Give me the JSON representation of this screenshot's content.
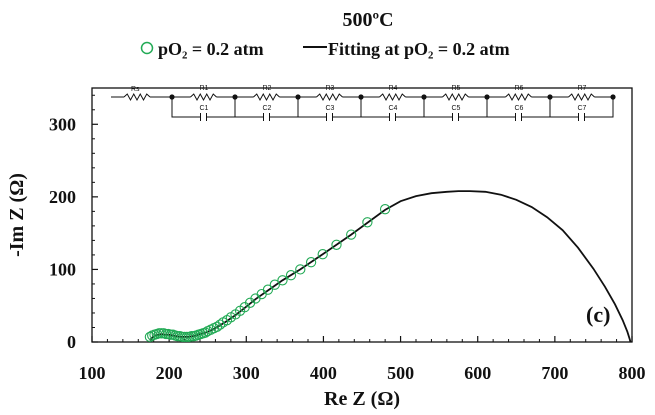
{
  "chart_data": {
    "type": "scatter",
    "title": "500ºC",
    "panel_label": "(c)",
    "xlabel": "Re Z (Ω)",
    "ylabel": "-Im Z (Ω)",
    "xlim": [
      100,
      800
    ],
    "ylim": [
      0,
      350
    ],
    "x_ticks": [
      "100",
      "200",
      "300",
      "400",
      "500",
      "600",
      "700",
      "800"
    ],
    "y_ticks": [
      "0",
      "100",
      "200",
      "300"
    ],
    "grid": false,
    "legend": {
      "placement": "top",
      "entries": [
        {
          "label": "pO₂ = 0.2 atm",
          "marker": "open-circle",
          "color": "#22aa55"
        },
        {
          "label": "Fitting at pO₂ = 0.2 atm",
          "marker": "line",
          "color": "#111111"
        }
      ]
    },
    "series": [
      {
        "name": "pO₂ = 0.2 atm",
        "kind": "markers",
        "color": "#22aa55",
        "points": [
          [
            175,
            7
          ],
          [
            178,
            9
          ],
          [
            181,
            10
          ],
          [
            184,
            11
          ],
          [
            187,
            12
          ],
          [
            190,
            12
          ],
          [
            193,
            12
          ],
          [
            196,
            11
          ],
          [
            199,
            11
          ],
          [
            202,
            10
          ],
          [
            205,
            10
          ],
          [
            208,
            9
          ],
          [
            211,
            8
          ],
          [
            214,
            8
          ],
          [
            217,
            7
          ],
          [
            220,
            7
          ],
          [
            223,
            7
          ],
          [
            226,
            7
          ],
          [
            229,
            8
          ],
          [
            232,
            8
          ],
          [
            235,
            9
          ],
          [
            238,
            10
          ],
          [
            241,
            11
          ],
          [
            244,
            12
          ],
          [
            247,
            13
          ],
          [
            250,
            15
          ],
          [
            254,
            17
          ],
          [
            258,
            19
          ],
          [
            262,
            21
          ],
          [
            266,
            24
          ],
          [
            270,
            27
          ],
          [
            275,
            30
          ],
          [
            280,
            34
          ],
          [
            286,
            38
          ],
          [
            292,
            43
          ],
          [
            298,
            48
          ],
          [
            305,
            54
          ],
          [
            312,
            60
          ],
          [
            320,
            66
          ],
          [
            328,
            72
          ],
          [
            337,
            79
          ],
          [
            347,
            85
          ],
          [
            358,
            92
          ],
          [
            370,
            100
          ],
          [
            384,
            110
          ],
          [
            399,
            121
          ],
          [
            417,
            134
          ],
          [
            436,
            148
          ],
          [
            457,
            165
          ],
          [
            480,
            183
          ]
        ]
      },
      {
        "name": "Fitting at pO₂ = 0.2 atm",
        "kind": "line",
        "color": "#111111",
        "points": [
          [
            175,
            2
          ],
          [
            178,
            6
          ],
          [
            182,
            9
          ],
          [
            186,
            10
          ],
          [
            190,
            11
          ],
          [
            195,
            10
          ],
          [
            200,
            10
          ],
          [
            205,
            9
          ],
          [
            210,
            8
          ],
          [
            215,
            7
          ],
          [
            220,
            7
          ],
          [
            225,
            7
          ],
          [
            230,
            8
          ],
          [
            235,
            9
          ],
          [
            240,
            11
          ],
          [
            245,
            12
          ],
          [
            250,
            14
          ],
          [
            258,
            18
          ],
          [
            266,
            23
          ],
          [
            275,
            29
          ],
          [
            286,
            37
          ],
          [
            298,
            47
          ],
          [
            312,
            59
          ],
          [
            328,
            71
          ],
          [
            347,
            85
          ],
          [
            370,
            100
          ],
          [
            399,
            121
          ],
          [
            436,
            148
          ],
          [
            480,
            182
          ],
          [
            500,
            194
          ],
          [
            520,
            201
          ],
          [
            540,
            205
          ],
          [
            560,
            207
          ],
          [
            575,
            208
          ],
          [
            590,
            208
          ],
          [
            610,
            207
          ],
          [
            630,
            203
          ],
          [
            650,
            196
          ],
          [
            670,
            186
          ],
          [
            690,
            172
          ],
          [
            710,
            154
          ],
          [
            730,
            130
          ],
          [
            750,
            101
          ],
          [
            765,
            76
          ],
          [
            778,
            52
          ],
          [
            788,
            30
          ],
          [
            794,
            14
          ],
          [
            797,
            4
          ],
          [
            798,
            0
          ]
        ]
      }
    ],
    "inset": {
      "description_type": "equivalent-circuit",
      "elements": [
        {
          "resistor": "R1",
          "capacitor": "C1"
        },
        {
          "resistor": "R2",
          "capacitor": "C2"
        },
        {
          "resistor": "R3",
          "capacitor": "C3"
        },
        {
          "resistor": "R4",
          "capacitor": "C4"
        },
        {
          "resistor": "R5",
          "capacitor": "C5"
        },
        {
          "resistor": "R6",
          "capacitor": "C6"
        },
        {
          "resistor": "R7",
          "capacitor": "C7"
        }
      ],
      "series_resistor": "Rs"
    }
  }
}
